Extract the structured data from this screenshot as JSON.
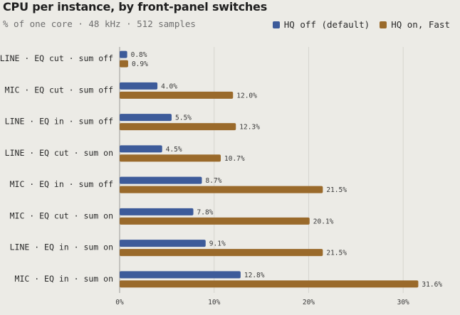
{
  "colors": {
    "hq_off": "#3d5b9a",
    "hq_on": "#9a6a2b",
    "grid": "#d6d5cf",
    "axis": "#9a9a95",
    "background": "#ecebe6"
  },
  "chart_data": {
    "type": "bar",
    "orientation": "horizontal",
    "title": "CPU per instance, by front-panel switches",
    "subtitle": "% of one core · 48 kHz · 512 samples",
    "categories": [
      "LINE · EQ cut · sum off",
      "MIC · EQ cut · sum off",
      "LINE · EQ in · sum off",
      "LINE · EQ cut · sum on",
      "MIC · EQ in · sum off",
      "MIC · EQ cut · sum on",
      "LINE · EQ in · sum on",
      "MIC · EQ in · sum on"
    ],
    "series": [
      {
        "name": "HQ off (default)",
        "values": [
          0.8,
          4.0,
          5.5,
          4.5,
          8.7,
          7.8,
          9.1,
          12.8
        ],
        "labels": [
          "0.8%",
          "4.0%",
          "5.5%",
          "4.5%",
          "8.7%",
          "7.8%",
          "9.1%",
          "12.8%"
        ]
      },
      {
        "name": "HQ on, Fast",
        "values": [
          0.9,
          12.0,
          12.3,
          10.7,
          21.5,
          20.1,
          21.5,
          31.6
        ],
        "labels": [
          "0.9%",
          "12.0%",
          "12.3%",
          "10.7%",
          "21.5%",
          "20.1%",
          "21.5%",
          "31.6%"
        ]
      }
    ],
    "xlim": [
      0,
      33
    ],
    "xticks": [
      0,
      10,
      20,
      30
    ],
    "xtick_labels": [
      "0%",
      "10%",
      "20%",
      "30%"
    ],
    "grid": true,
    "legend_placement": "top-right"
  }
}
